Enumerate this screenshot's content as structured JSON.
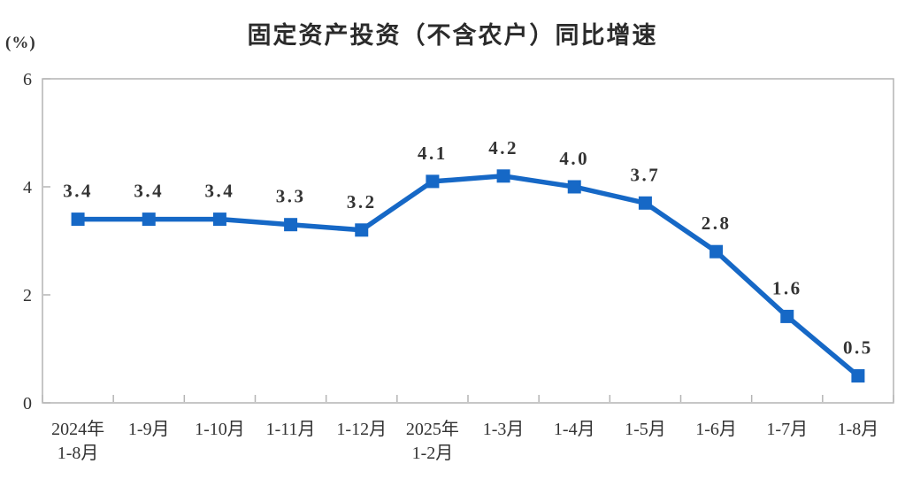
{
  "chart_data": {
    "type": "line",
    "title": "固定资产投资（不含农户）同比增速",
    "ylabel": "(%)",
    "categories": [
      "2024年\n1-8月",
      "1-9月",
      "1-10月",
      "1-11月",
      "1-12月",
      "2025年\n1-2月",
      "1-3月",
      "1-4月",
      "1-5月",
      "1-6月",
      "1-7月",
      "1-8月"
    ],
    "values": [
      3.4,
      3.4,
      3.4,
      3.3,
      3.2,
      4.1,
      4.2,
      4.0,
      3.7,
      2.8,
      1.6,
      0.5
    ],
    "labels": [
      "3.4",
      "3.4",
      "3.4",
      "3.3",
      "3.2",
      "4.1",
      "4.2",
      "4.0",
      "3.7",
      "2.8",
      "1.6",
      "0.5"
    ],
    "ylim": [
      0,
      6
    ],
    "yticks": [
      0,
      2,
      4,
      6
    ],
    "grid": false,
    "legend": "none",
    "marker": "square",
    "line_color": "#1668c6",
    "axis_color": "#b4b4b4",
    "label_color": "#333333"
  }
}
